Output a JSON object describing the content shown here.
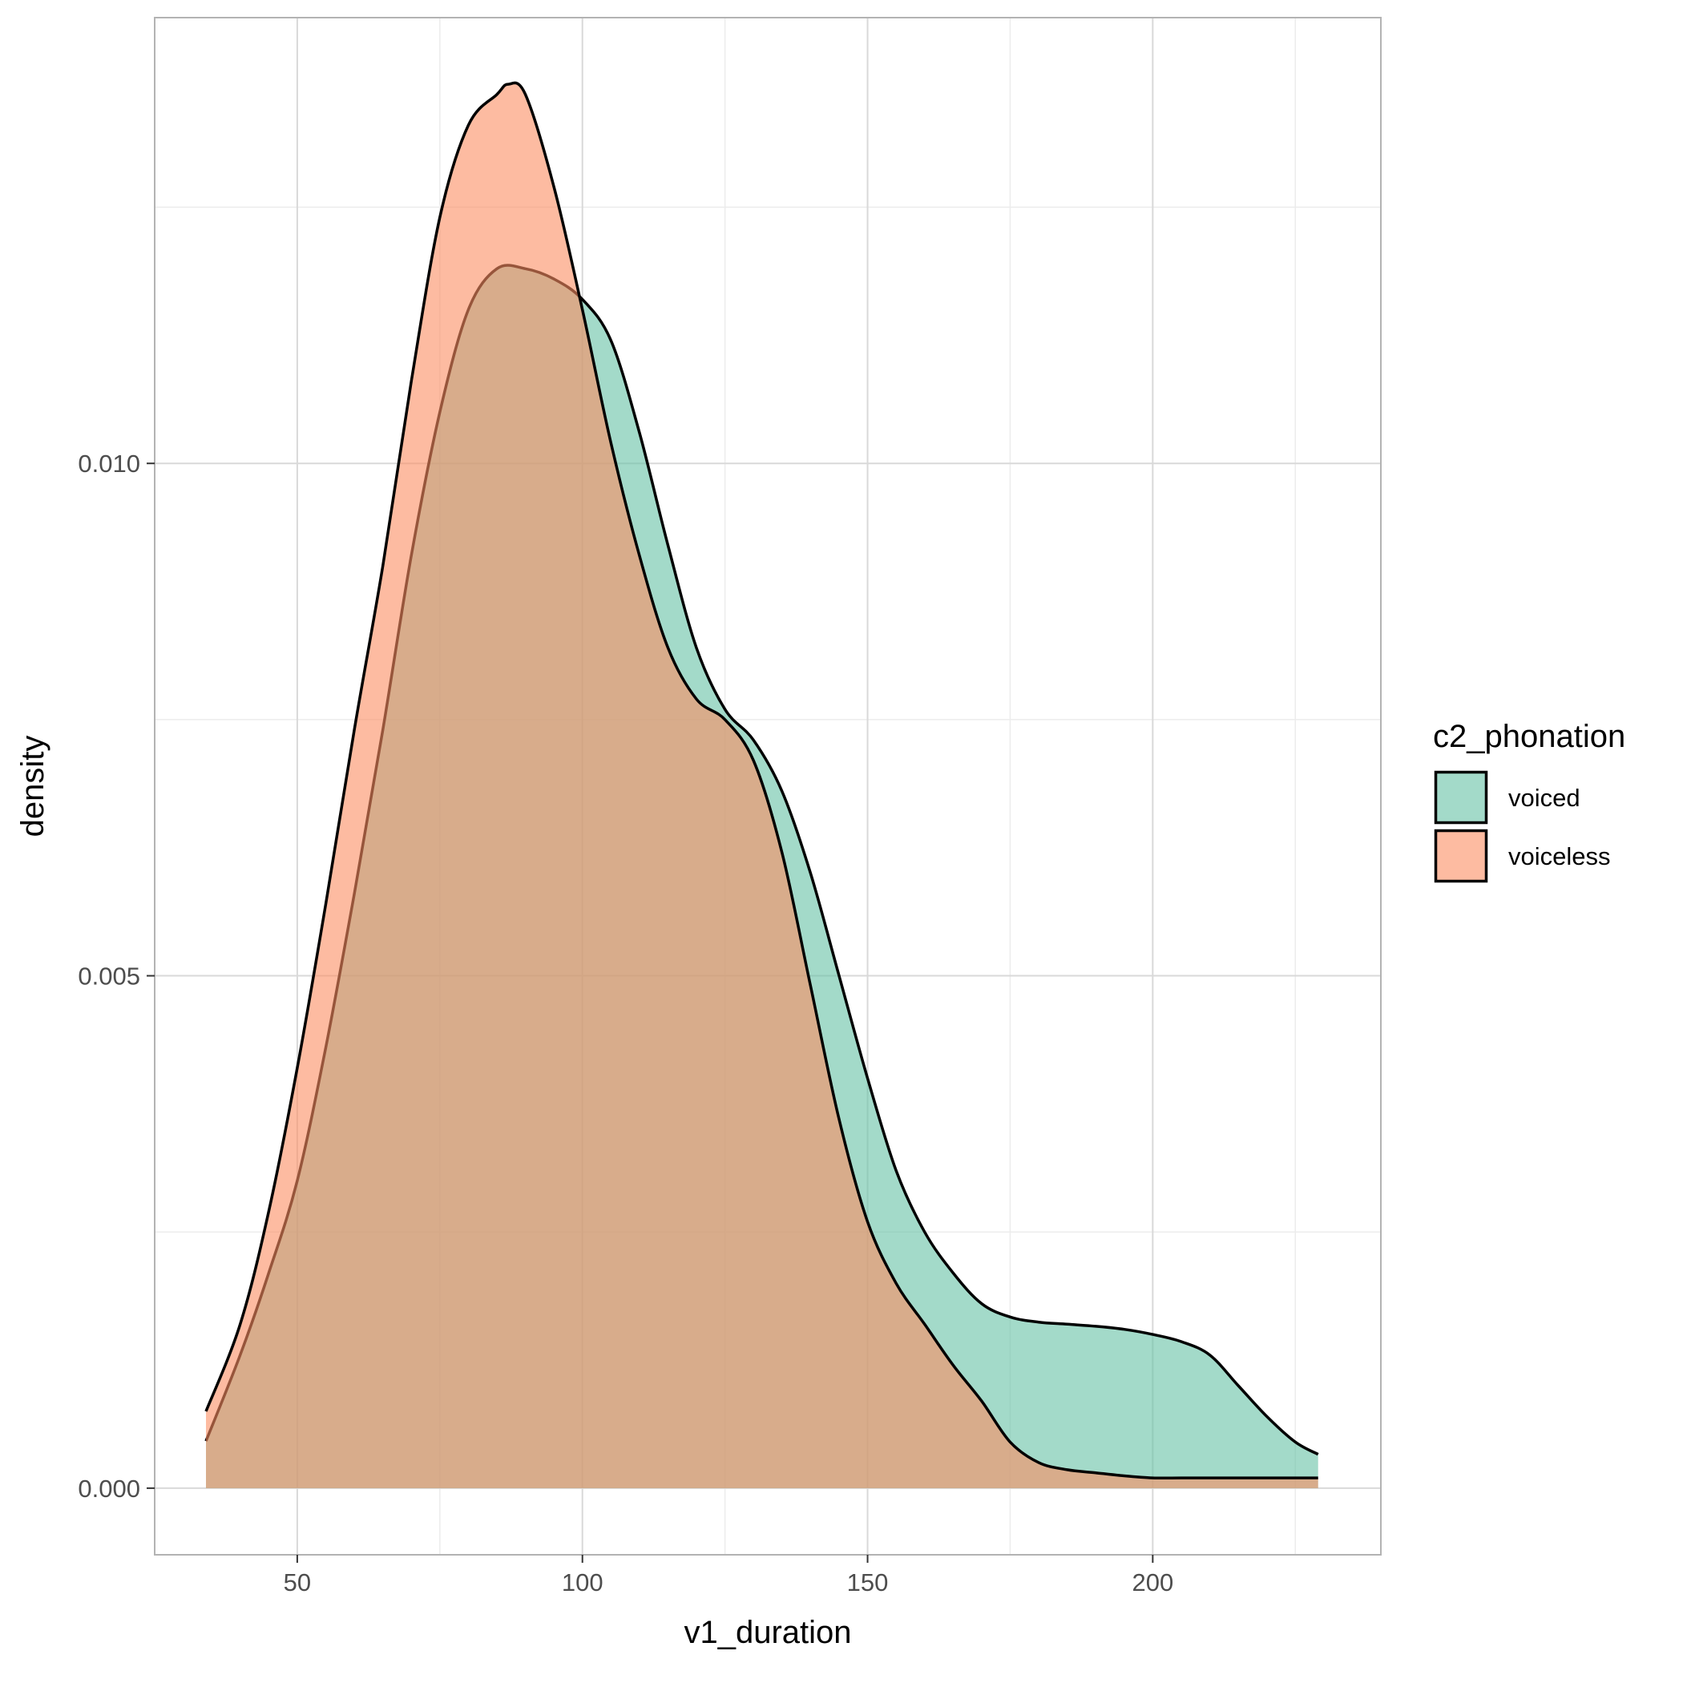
{
  "chart_data": {
    "type": "area",
    "subtype": "density",
    "xlabel": "v1_duration",
    "ylabel": "density",
    "xlim": [
      25,
      240
    ],
    "ylim": [
      -0.00065,
      0.01435
    ],
    "x_ticks": [
      50,
      100,
      150,
      200
    ],
    "x_tick_labels": [
      "50",
      "100",
      "150",
      "200"
    ],
    "y_ticks": [
      0.0,
      0.005,
      0.01
    ],
    "y_tick_labels": [
      "0.000",
      "0.005",
      "0.010"
    ],
    "grid": true,
    "legend": {
      "title": "c2_phonation",
      "position": "right"
    },
    "fill_opacity": 0.6,
    "series": [
      {
        "name": "voiced",
        "color": "#66c2a5",
        "x": [
          34,
          40,
          45,
          50,
          55,
          60,
          65,
          70,
          75,
          80,
          85,
          90,
          95,
          100,
          105,
          110,
          115,
          120,
          125,
          130,
          135,
          140,
          145,
          150,
          155,
          160,
          165,
          170,
          175,
          180,
          185,
          190,
          195,
          200,
          205,
          210,
          215,
          220,
          225,
          229
        ],
        "y": [
          0.00046,
          0.0013,
          0.0021,
          0.003,
          0.0043,
          0.0058,
          0.0074,
          0.0091,
          0.0105,
          0.0115,
          0.0119,
          0.0119,
          0.0118,
          0.0116,
          0.0112,
          0.0103,
          0.0092,
          0.0082,
          0.0076,
          0.0073,
          0.0068,
          0.006,
          0.005,
          0.004,
          0.0031,
          0.0025,
          0.0021,
          0.0018,
          0.00167,
          0.00162,
          0.0016,
          0.00158,
          0.00155,
          0.0015,
          0.00143,
          0.0013,
          0.001,
          0.0007,
          0.00045,
          0.00033
        ]
      },
      {
        "name": "voiceless",
        "color": "#fc8d62",
        "x": [
          34,
          40,
          45,
          50,
          55,
          60,
          65,
          70,
          75,
          80,
          85,
          87,
          90,
          95,
          100,
          105,
          110,
          115,
          120,
          125,
          130,
          135,
          140,
          145,
          150,
          155,
          160,
          165,
          170,
          175,
          180,
          185,
          190,
          195,
          200,
          205,
          210,
          215,
          220,
          225,
          229
        ],
        "y": [
          0.00075,
          0.0016,
          0.0027,
          0.0041,
          0.0057,
          0.0074,
          0.009,
          0.0108,
          0.0124,
          0.0133,
          0.0136,
          0.0137,
          0.0136,
          0.0127,
          0.0115,
          0.0102,
          0.0091,
          0.0082,
          0.0077,
          0.0075,
          0.0071,
          0.0062,
          0.0049,
          0.0036,
          0.0026,
          0.002,
          0.0016,
          0.0012,
          0.00085,
          0.00045,
          0.00025,
          0.00018,
          0.00015,
          0.00012,
          0.0001,
          0.0001,
          0.0001,
          0.0001,
          0.0001,
          0.0001,
          0.0001
        ]
      }
    ]
  }
}
